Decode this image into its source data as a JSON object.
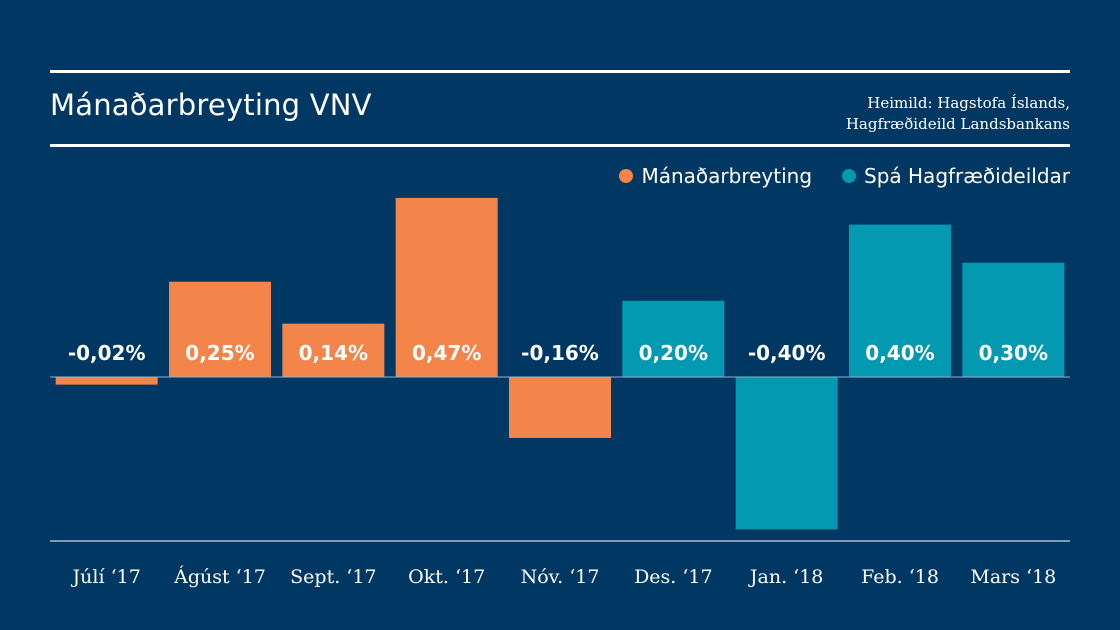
{
  "header": {
    "title": "Mánaðarbreyting VNV",
    "source_line1": "Heimild: Hagstofa Íslands,",
    "source_line2": "Hagfræðideild Landsbankans"
  },
  "colors": {
    "background": "#003863",
    "actual": "#f4854a",
    "forecast": "#0399b0",
    "text": "#ffffff"
  },
  "chart_data": {
    "type": "bar",
    "title": "Mánaðarbreyting VNV",
    "xlabel": "",
    "ylabel": "",
    "ylim": [
      -0.47,
      0.47
    ],
    "grid": false,
    "legend_position": "top-right",
    "categories": [
      "Júlí ‘17",
      "Ágúst ‘17",
      "Sept. ‘17",
      "Okt. ‘17",
      "Nóv. ‘17",
      "Des. ‘17",
      "Jan. ‘18",
      "Feb. ‘18",
      "Mars ‘18"
    ],
    "values": [
      -0.02,
      0.25,
      0.14,
      0.47,
      -0.16,
      0.2,
      -0.4,
      0.4,
      0.3
    ],
    "labels": [
      "-0,02%",
      "0,25%",
      "0,14%",
      "0,47%",
      "-0,16%",
      "0,20%",
      "-0,40%",
      "0,40%",
      "0,30%"
    ],
    "series_of_point": [
      "actual",
      "actual",
      "actual",
      "actual",
      "actual",
      "forecast",
      "forecast",
      "forecast",
      "forecast"
    ],
    "series": [
      {
        "name": "Mánaðarbreyting",
        "key": "actual",
        "values": [
          -0.02,
          0.25,
          0.14,
          0.47,
          -0.16,
          null,
          null,
          null,
          null
        ]
      },
      {
        "name": "Spá Hagfræðideildar",
        "key": "forecast",
        "values": [
          null,
          null,
          null,
          null,
          null,
          0.2,
          -0.4,
          0.4,
          0.3
        ]
      }
    ]
  },
  "legend": [
    {
      "label": "Mánaðarbreyting",
      "key": "actual"
    },
    {
      "label": "Spá Hagfræðideildar",
      "key": "forecast"
    }
  ]
}
